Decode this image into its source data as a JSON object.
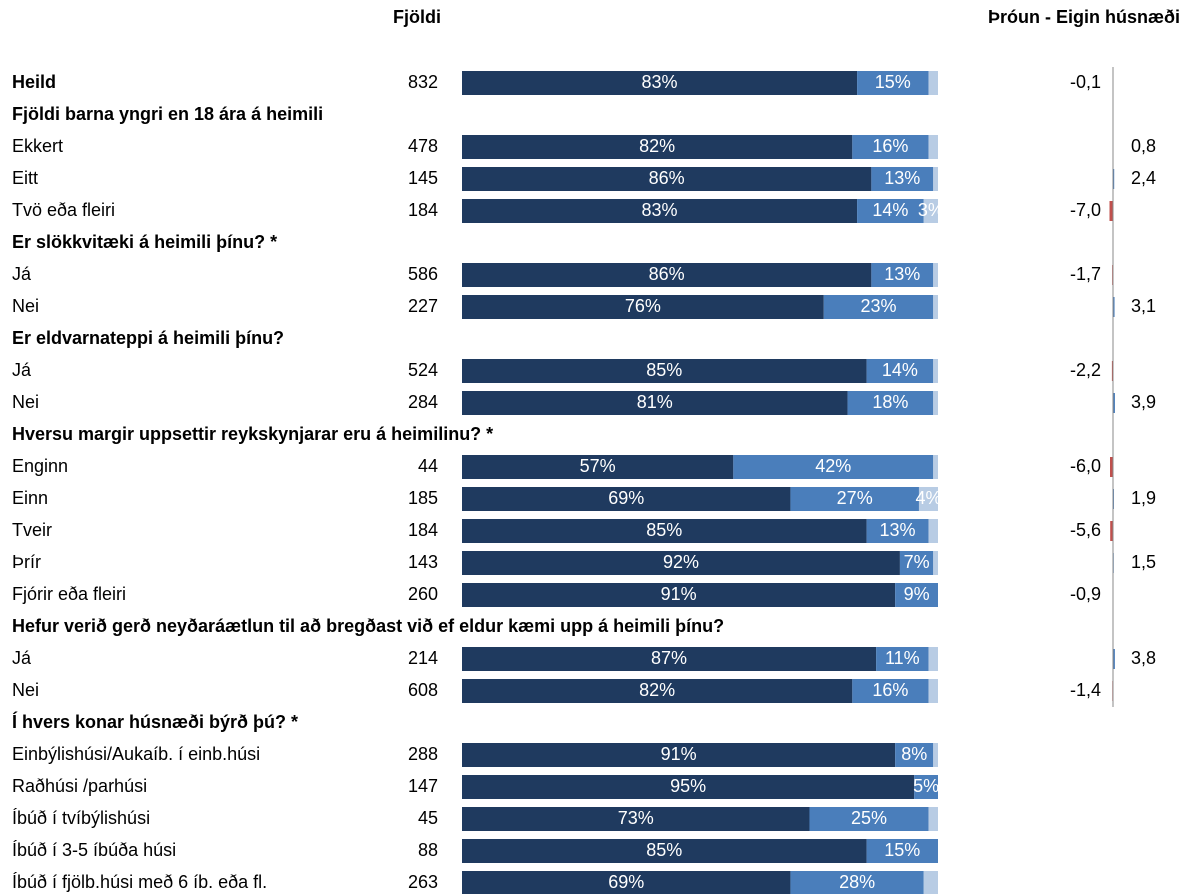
{
  "chart_data": {
    "type": "stacked-bar-table",
    "count_header": "Fjöldi",
    "change_header": "Þróun - Eigin húsnæði",
    "colors": [
      "#1f3a5f",
      "#4a7ebb",
      "#b8cce4"
    ],
    "change_colors": {
      "positive": "#4a7ebb",
      "negative": "#c0504d"
    },
    "rows": [
      {
        "label": "Heild",
        "bold": true,
        "count": 832,
        "values": [
          83,
          15,
          2
        ],
        "value_labels": [
          "83%",
          "15%",
          null
        ],
        "change": -0.1,
        "change_label": "-0,1"
      },
      {
        "heading": "Fjöldi barna yngri en 18 ára á heimili"
      },
      {
        "label": "Ekkert",
        "count": 478,
        "values": [
          82,
          16,
          2
        ],
        "value_labels": [
          "82%",
          "16%",
          null
        ],
        "change": 0.8,
        "change_label": "0,8"
      },
      {
        "label": "Eitt",
        "count": 145,
        "values": [
          86,
          13,
          1
        ],
        "value_labels": [
          "86%",
          "13%",
          null
        ],
        "change": 2.4,
        "change_label": "2,4"
      },
      {
        "label": "Tvö eða fleiri",
        "count": 184,
        "values": [
          83,
          14,
          3
        ],
        "value_labels": [
          "83%",
          "14%",
          "3%"
        ],
        "change": -7.0,
        "change_label": "-7,0"
      },
      {
        "heading": "Er slökkvitæki á heimili þínu? *"
      },
      {
        "label": "Já",
        "count": 586,
        "values": [
          86,
          13,
          1
        ],
        "value_labels": [
          "86%",
          "13%",
          null
        ],
        "change": -1.7,
        "change_label": "-1,7"
      },
      {
        "label": "Nei",
        "count": 227,
        "values": [
          76,
          23,
          1
        ],
        "value_labels": [
          "76%",
          "23%",
          null
        ],
        "change": 3.1,
        "change_label": "3,1"
      },
      {
        "heading": "Er eldvarnateppi á heimili þínu?"
      },
      {
        "label": "Já",
        "count": 524,
        "values": [
          85,
          14,
          1
        ],
        "value_labels": [
          "85%",
          "14%",
          null
        ],
        "change": -2.2,
        "change_label": "-2,2"
      },
      {
        "label": "Nei",
        "count": 284,
        "values": [
          81,
          18,
          1
        ],
        "value_labels": [
          "81%",
          "18%",
          null
        ],
        "change": 3.9,
        "change_label": "3,9"
      },
      {
        "heading": "Hversu margir uppsettir reykskynjarar eru á heimilinu? *"
      },
      {
        "label": "Enginn",
        "count": 44,
        "values": [
          57,
          42,
          1
        ],
        "value_labels": [
          "57%",
          "42%",
          null
        ],
        "change": -6.0,
        "change_label": "-6,0"
      },
      {
        "label": "Einn",
        "count": 185,
        "values": [
          69,
          27,
          4
        ],
        "value_labels": [
          "69%",
          "27%",
          "4%"
        ],
        "change": 1.9,
        "change_label": "1,9"
      },
      {
        "label": "Tveir",
        "count": 184,
        "values": [
          85,
          13,
          2
        ],
        "value_labels": [
          "85%",
          "13%",
          null
        ],
        "change": -5.6,
        "change_label": "-5,6"
      },
      {
        "label": "Þrír",
        "count": 143,
        "values": [
          92,
          7,
          1
        ],
        "value_labels": [
          "92%",
          "7%",
          null
        ],
        "change": 1.5,
        "change_label": "1,5"
      },
      {
        "label": "Fjórir eða fleiri",
        "count": 260,
        "values": [
          91,
          9,
          0
        ],
        "value_labels": [
          "91%",
          "9%",
          null
        ],
        "change": -0.9,
        "change_label": "-0,9"
      },
      {
        "heading": "Hefur verið gerð neyðaráætlun til að bregðast við ef eldur kæmi upp á heimili þínu?"
      },
      {
        "label": "Já",
        "count": 214,
        "values": [
          87,
          11,
          2
        ],
        "value_labels": [
          "87%",
          "11%",
          null
        ],
        "change": 3.8,
        "change_label": "3,8"
      },
      {
        "label": "Nei",
        "count": 608,
        "values": [
          82,
          16,
          2
        ],
        "value_labels": [
          "82%",
          "16%",
          null
        ],
        "change": -1.4,
        "change_label": "-1,4"
      },
      {
        "heading": "Í hvers konar húsnæði býrð þú? *"
      },
      {
        "label": "Einbýlishúsi/Aukaíb. í einb.húsi",
        "count": 288,
        "values": [
          91,
          8,
          1
        ],
        "value_labels": [
          "91%",
          "8%",
          null
        ],
        "change": null,
        "change_label": null
      },
      {
        "label": "Raðhúsi /parhúsi",
        "count": 147,
        "values": [
          95,
          5,
          0
        ],
        "value_labels": [
          "95%",
          "5%",
          null
        ],
        "change": null,
        "change_label": null
      },
      {
        "label": "Íbúð í tvíbýlishúsi",
        "count": 45,
        "values": [
          73,
          25,
          2
        ],
        "value_labels": [
          "73%",
          "25%",
          null
        ],
        "change": null,
        "change_label": null
      },
      {
        "label": "Íbúð í 3-5 íbúða húsi",
        "count": 88,
        "values": [
          85,
          15,
          0
        ],
        "value_labels": [
          "85%",
          "15%",
          null
        ],
        "change": null,
        "change_label": null
      },
      {
        "label": "Íbúð í fjölb.húsi með 6 íb. eða fl.",
        "count": 263,
        "values": [
          69,
          28,
          3
        ],
        "value_labels": [
          "69%",
          "28%",
          null
        ],
        "change": null,
        "change_label": null
      }
    ]
  }
}
